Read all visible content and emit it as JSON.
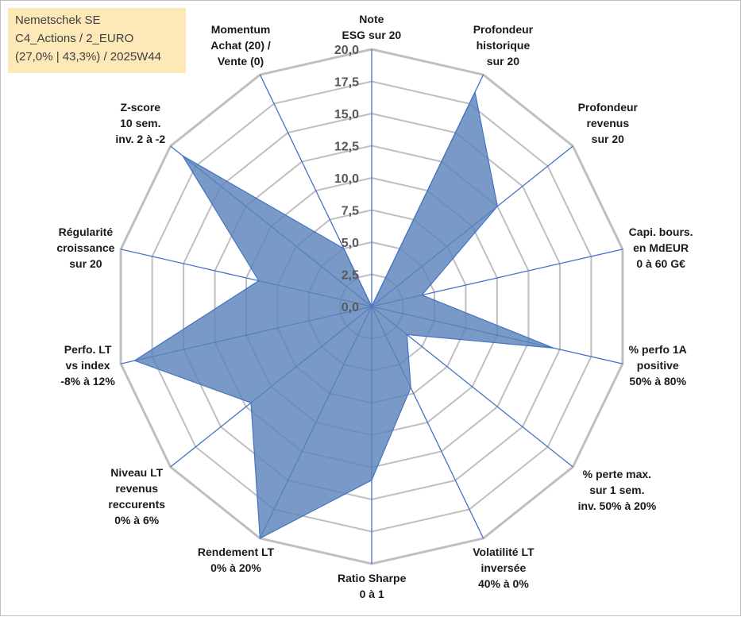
{
  "title": {
    "line1": "Nemetschek SE",
    "line2": "C4_Actions / 2_EURO",
    "line3": "(27,0% | 43,3%) / 2025W44"
  },
  "chart_data": {
    "type": "radar",
    "rmin": 0,
    "rmax": 20,
    "tick_values": [
      0,
      2.5,
      5,
      7.5,
      10,
      12.5,
      15,
      17.5,
      20
    ],
    "tick_labels": [
      "0,0",
      "2,5",
      "5,0",
      "7,5",
      "10,0",
      "12,5",
      "15,0",
      "17,5",
      "20,0"
    ],
    "axes": [
      {
        "lines": [
          "Note",
          "ESG sur 20"
        ],
        "value": 0
      },
      {
        "lines": [
          "Profondeur",
          "historique",
          "sur 20"
        ],
        "value": 18.5
      },
      {
        "lines": [
          "Profondeur",
          "revenus",
          "sur 20"
        ],
        "value": 12.5
      },
      {
        "lines": [
          "Capi. bours.",
          "en MdEUR",
          "0 à 60 G€"
        ],
        "value": 4.0
      },
      {
        "lines": [
          "% perfo 1A",
          "positive",
          "50% à 80%"
        ],
        "value": 14.5
      },
      {
        "lines": [
          "% perte max.",
          "sur 1 sem.",
          "inv. 50% à 20%"
        ],
        "value": 3.5
      },
      {
        "lines": [
          "Volatilité LT",
          "inversée",
          "40% à 0%"
        ],
        "value": 7.0
      },
      {
        "lines": [
          "Ratio Sharpe",
          "0 à 1"
        ],
        "value": 13.5
      },
      {
        "lines": [
          "Rendement LT",
          "0% à 20%"
        ],
        "value": 20.0
      },
      {
        "lines": [
          "Niveau LT",
          "revenus",
          "reccurents",
          "0% à 6%"
        ],
        "value": 12.0
      },
      {
        "lines": [
          "Perfo. LT",
          "vs index",
          "-8% à 12%"
        ],
        "value": 18.9
      },
      {
        "lines": [
          "Régularité",
          "croissance",
          "sur 20"
        ],
        "value": 9.0
      },
      {
        "lines": [
          "Z-score",
          "10 sem.",
          "inv. 2 à -2"
        ],
        "value": 18.8
      },
      {
        "lines": [
          "Momentum",
          "Achat (20) /",
          "Vente (0)"
        ],
        "value": 5.0
      }
    ],
    "colors": {
      "fill": "#5b84bb",
      "stroke": "#4472c4",
      "grid": "#bfbfbf",
      "spoke": "#4472c4"
    }
  }
}
